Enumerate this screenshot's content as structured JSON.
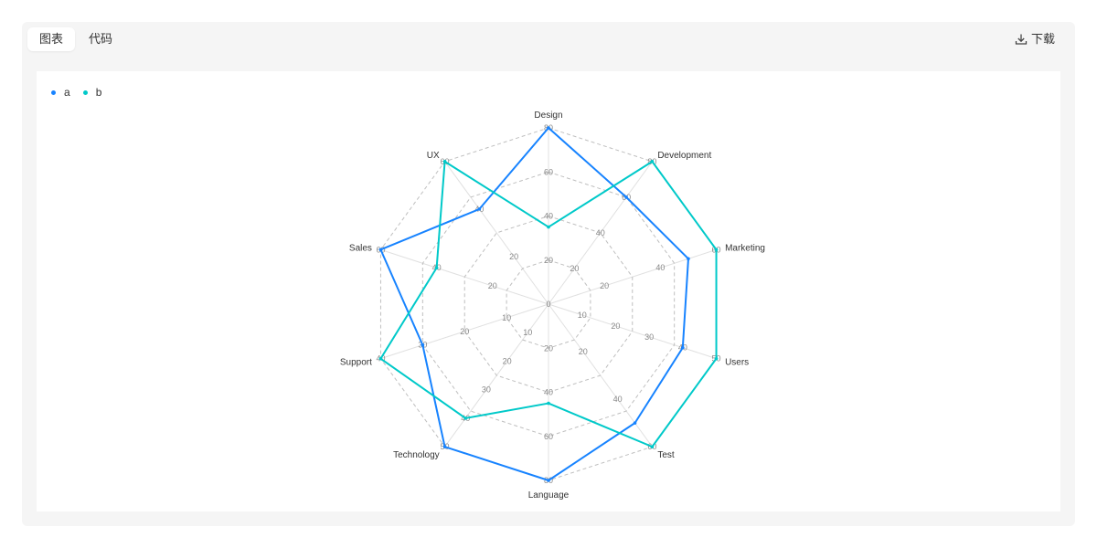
{
  "tabs": [
    {
      "label": "图表",
      "active": true
    },
    {
      "label": "代码",
      "active": false
    }
  ],
  "toolbar": {
    "download_label": "下载"
  },
  "colors": {
    "a": "#1783FF",
    "b": "#00C9C9",
    "grid": "#bfbfbf",
    "axis": "#e0e0e0"
  },
  "chart_data": {
    "type": "radar",
    "title": "",
    "legend_position": "top-left",
    "categories": [
      "Design",
      "Development",
      "Marketing",
      "Users",
      "Test",
      "Language",
      "Technology",
      "Support",
      "Sales",
      "UX"
    ],
    "axis_max": [
      80,
      80,
      60,
      50,
      60,
      80,
      50,
      40,
      60,
      60
    ],
    "axis_ticks": [
      [
        0,
        20,
        40,
        60,
        80
      ],
      [
        0,
        20,
        40,
        60,
        80
      ],
      [
        0,
        20,
        40,
        60
      ],
      [
        0,
        10,
        20,
        30,
        40,
        50
      ],
      [
        0,
        20,
        40,
        60
      ],
      [
        0,
        20,
        40,
        60,
        80
      ],
      [
        0,
        10,
        20,
        30,
        40,
        50
      ],
      [
        0,
        10,
        20,
        30,
        40
      ],
      [
        0,
        20,
        40,
        60
      ],
      [
        0,
        20,
        40,
        60
      ]
    ],
    "series": [
      {
        "name": "a",
        "values": [
          80,
          60,
          50,
          40,
          50,
          80,
          50,
          30,
          60,
          40
        ]
      },
      {
        "name": "b",
        "values": [
          35,
          80,
          60,
          50,
          60,
          45,
          40,
          40,
          40,
          60
        ]
      }
    ]
  }
}
